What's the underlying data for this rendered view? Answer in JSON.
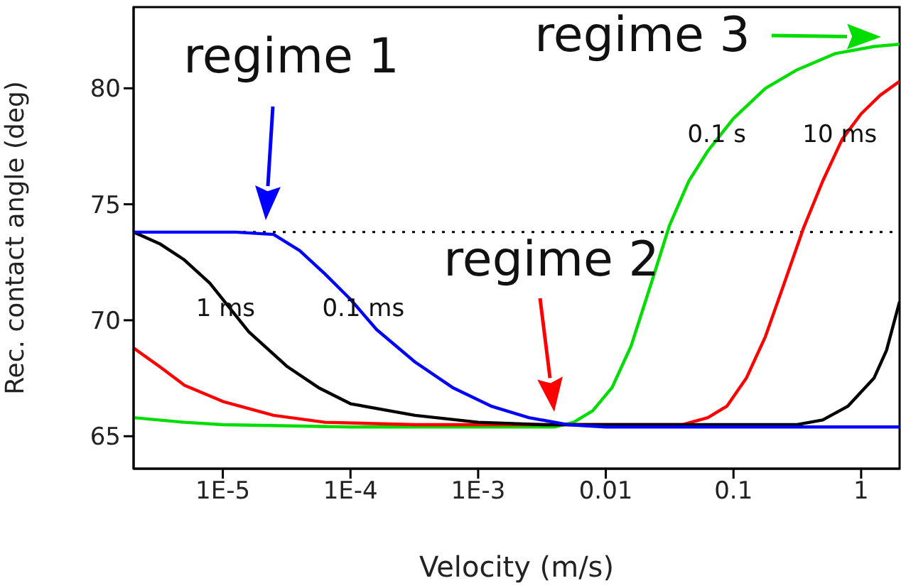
{
  "chart_data": {
    "type": "line",
    "xlabel": "Velocity (m/s)",
    "ylabel": "Rec. contact angle (deg)",
    "log": "x",
    "xlim": [
      2e-06,
      2
    ],
    "ylim": [
      63.6,
      83.5
    ],
    "xticks": [
      {
        "value": 1e-05,
        "label": "1E-5"
      },
      {
        "value": 0.0001,
        "label": "1E-4"
      },
      {
        "value": 0.001,
        "label": "1E-3"
      },
      0.01,
      0.1,
      1
    ],
    "yticks": [
      65,
      70,
      75,
      80
    ],
    "marker": "none",
    "line_style": "solid",
    "series": [
      {
        "color": "#00dd00",
        "x": [
          2e-06,
          5e-06,
          1e-05,
          0.0001,
          0.004,
          0.0056,
          0.0079,
          0.0112,
          0.0158,
          0.0224,
          0.0316,
          0.0447,
          0.063,
          0.1,
          0.178,
          0.316,
          0.63,
          1.26,
          2
        ],
        "values": [
          65.8,
          65.6,
          65.5,
          65.4,
          65.4,
          65.6,
          66.1,
          67.1,
          68.9,
          71.5,
          74.1,
          76.0,
          77.3,
          78.7,
          80.0,
          80.8,
          81.5,
          81.8,
          81.9
        ]
      },
      {
        "color": "#ff0000",
        "x": [
          2e-06,
          3.2e-06,
          5e-06,
          1e-05,
          2.5e-05,
          6.3e-05,
          0.00032,
          0.04,
          0.063,
          0.089,
          0.126,
          0.178,
          0.25,
          0.355,
          0.5,
          0.71,
          1,
          1.41,
          2
        ],
        "values": [
          68.8,
          68.0,
          67.2,
          66.5,
          65.9,
          65.6,
          65.5,
          65.5,
          65.8,
          66.3,
          67.5,
          69.3,
          71.6,
          74.0,
          76.0,
          77.8,
          78.9,
          79.7,
          80.3
        ]
      },
      {
        "color": "#000000",
        "x": [
          2e-06,
          3.2e-06,
          5e-06,
          7.9e-06,
          1.6e-05,
          3.2e-05,
          5.6e-05,
          0.0001,
          0.00032,
          0.001,
          0.0032,
          0.1,
          0.316,
          0.5,
          0.79,
          1.26,
          1.58,
          2
        ],
        "values": [
          73.8,
          73.3,
          72.6,
          71.6,
          69.5,
          68.0,
          67.1,
          66.4,
          65.9,
          65.6,
          65.5,
          65.5,
          65.5,
          65.7,
          66.3,
          67.5,
          68.7,
          70.8
        ]
      },
      {
        "color": "#0000ff",
        "x": [
          2e-06,
          1.26e-05,
          2.5e-05,
          4e-05,
          6.3e-05,
          0.0001,
          0.00016,
          0.00032,
          0.00063,
          0.00126,
          0.0025,
          0.005,
          0.01,
          2
        ],
        "values": [
          73.8,
          73.8,
          73.7,
          73.0,
          72.0,
          70.9,
          69.6,
          68.2,
          67.1,
          66.3,
          65.8,
          65.5,
          65.4,
          65.4
        ]
      }
    ],
    "ref_lines": [
      {
        "axis": "y",
        "value": 73.8,
        "color": "#000000",
        "line_style": "dotted"
      }
    ],
    "annotations": [
      {
        "text": "1 ms",
        "x": 1.05e-05,
        "y": 70.5
      },
      {
        "text": "0.1 ms",
        "x": 0.000126,
        "y": 70.5
      },
      {
        "text": "0.1 s",
        "x": 0.074,
        "y": 78.0
      },
      {
        "text": "10 ms",
        "x": 0.68,
        "y": 78.0
      },
      "regime 1",
      "regime 2",
      "regime 3"
    ]
  }
}
